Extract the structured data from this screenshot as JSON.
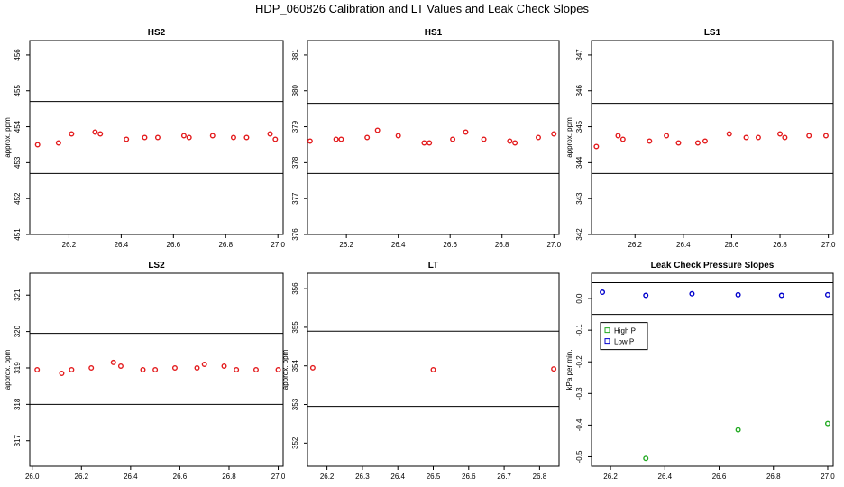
{
  "title": "HDP_060826  Calibration and LT Values and Leak Check Slopes",
  "colors": {
    "point_red": "#e31a1c",
    "high_p": "#22aa22",
    "low_p": "#0000cc",
    "axis": "#000000"
  },
  "chart_data": [
    {
      "type": "scatter",
      "title": "HS2",
      "ylabel": "approx. ppm",
      "xlim": [
        26.05,
        27.02
      ],
      "ylim": [
        451,
        456.4
      ],
      "xticks": [
        26.2,
        26.4,
        26.6,
        26.8,
        27.0
      ],
      "xtick_labels": [
        "26.2",
        "26.4",
        "26.6",
        "26.8",
        "27.0"
      ],
      "yticks": [
        451,
        452,
        453,
        454,
        455,
        456
      ],
      "ytick_labels": [
        "451",
        "452",
        "453",
        "454",
        "455",
        "456"
      ],
      "hlines": [
        454.7,
        452.7
      ],
      "series": [
        {
          "color": "#e31a1c",
          "x": [
            26.08,
            26.16,
            26.21,
            26.3,
            26.32,
            26.42,
            26.49,
            26.54,
            26.64,
            26.66,
            26.75,
            26.83,
            26.88,
            26.97,
            26.99
          ],
          "y": [
            453.5,
            453.55,
            453.8,
            453.85,
            453.8,
            453.65,
            453.7,
            453.7,
            453.75,
            453.7,
            453.75,
            453.7,
            453.7,
            453.8,
            453.65
          ]
        }
      ]
    },
    {
      "type": "scatter",
      "title": "HS1",
      "ylabel": "",
      "xlim": [
        26.05,
        27.02
      ],
      "ylim": [
        376,
        381.4
      ],
      "xticks": [
        26.2,
        26.4,
        26.6,
        26.8,
        27.0
      ],
      "xtick_labels": [
        "26.2",
        "26.4",
        "26.6",
        "26.8",
        "27.0"
      ],
      "yticks": [
        376,
        377,
        378,
        379,
        380,
        381
      ],
      "ytick_labels": [
        "376",
        "377",
        "378",
        "379",
        "380",
        "381"
      ],
      "hlines": [
        379.65,
        377.7
      ],
      "series": [
        {
          "color": "#e31a1c",
          "x": [
            26.06,
            26.16,
            26.18,
            26.28,
            26.32,
            26.4,
            26.5,
            26.52,
            26.61,
            26.66,
            26.73,
            26.83,
            26.85,
            26.94,
            27.0
          ],
          "y": [
            378.6,
            378.65,
            378.65,
            378.7,
            378.9,
            378.75,
            378.55,
            378.55,
            378.65,
            378.85,
            378.65,
            378.6,
            378.55,
            378.7,
            378.8
          ]
        }
      ]
    },
    {
      "type": "scatter",
      "title": "LS1",
      "ylabel": "approx. ppm",
      "xlim": [
        26.02,
        27.02
      ],
      "ylim": [
        342,
        347.4
      ],
      "xticks": [
        26.2,
        26.4,
        26.6,
        26.8,
        27.0
      ],
      "xtick_labels": [
        "26.2",
        "26.4",
        "26.6",
        "26.8",
        "27.0"
      ],
      "yticks": [
        342,
        343,
        344,
        345,
        346,
        347
      ],
      "ytick_labels": [
        "342",
        "343",
        "344",
        "345",
        "346",
        "347"
      ],
      "hlines": [
        345.65,
        343.7
      ],
      "series": [
        {
          "color": "#e31a1c",
          "x": [
            26.04,
            26.13,
            26.15,
            26.26,
            26.33,
            26.38,
            26.46,
            26.49,
            26.59,
            26.66,
            26.71,
            26.8,
            26.82,
            26.92,
            26.99
          ],
          "y": [
            344.45,
            344.75,
            344.65,
            344.6,
            344.75,
            344.55,
            344.55,
            344.6,
            344.8,
            344.7,
            344.7,
            344.8,
            344.7,
            344.75,
            344.75
          ]
        }
      ]
    },
    {
      "type": "scatter",
      "title": "LS2",
      "ylabel": "approx. ppm",
      "xlim": [
        25.99,
        27.02
      ],
      "ylim": [
        316.3,
        321.6
      ],
      "xticks": [
        26.0,
        26.2,
        26.4,
        26.6,
        26.8,
        27.0
      ],
      "xtick_labels": [
        "26.0",
        "26.2",
        "26.4",
        "26.6",
        "26.8",
        "27.0"
      ],
      "yticks": [
        317,
        318,
        319,
        320,
        321
      ],
      "ytick_labels": [
        "317",
        "318",
        "319",
        "320",
        "321"
      ],
      "hlines": [
        319.95,
        318.0
      ],
      "series": [
        {
          "color": "#e31a1c",
          "x": [
            26.02,
            26.12,
            26.16,
            26.24,
            26.33,
            26.36,
            26.45,
            26.5,
            26.58,
            26.67,
            26.7,
            26.78,
            26.83,
            26.91,
            27.0
          ],
          "y": [
            318.95,
            318.85,
            318.95,
            319.0,
            319.15,
            319.05,
            318.95,
            318.95,
            319.0,
            319.0,
            319.1,
            319.05,
            318.95,
            318.95,
            318.95
          ]
        }
      ]
    },
    {
      "type": "scatter",
      "title": "LT",
      "ylabel": "approx. ppm",
      "xlim": [
        26.145,
        26.855
      ],
      "ylim": [
        351.4,
        356.4
      ],
      "xticks": [
        26.2,
        26.3,
        26.4,
        26.5,
        26.6,
        26.7,
        26.8
      ],
      "xtick_labels": [
        "26.2",
        "26.3",
        "26.4",
        "26.5",
        "26.6",
        "26.7",
        "26.8"
      ],
      "yticks": [
        352,
        353,
        354,
        355,
        356
      ],
      "ytick_labels": [
        "352",
        "353",
        "354",
        "355",
        "356"
      ],
      "hlines": [
        354.9,
        352.95
      ],
      "series": [
        {
          "color": "#e31a1c",
          "x": [
            26.16,
            26.5,
            26.84
          ],
          "y": [
            353.95,
            353.9,
            353.92
          ]
        }
      ]
    },
    {
      "type": "scatter",
      "title": "Leak Check Pressure Slopes",
      "ylabel": "kPa per min.",
      "xlim": [
        26.13,
        27.02
      ],
      "ylim": [
        -0.53,
        0.08
      ],
      "xticks": [
        26.2,
        26.4,
        26.6,
        26.8,
        27.0
      ],
      "xtick_labels": [
        "26.2",
        "26.4",
        "26.6",
        "26.8",
        "27.0"
      ],
      "yticks": [
        0.0,
        -0.1,
        -0.2,
        -0.3,
        -0.4,
        -0.5
      ],
      "ytick_labels": [
        "0.0",
        "-0.1",
        "-0.2",
        "-0.3",
        "-0.4",
        "-0.5"
      ],
      "hlines": [
        0.05,
        -0.05
      ],
      "legend": {
        "position": "left-middle",
        "entries": [
          {
            "label": "High P",
            "color": "#22aa22"
          },
          {
            "label": "Low P",
            "color": "#0000cc"
          }
        ]
      },
      "series": [
        {
          "name": "High P",
          "color": "#22aa22",
          "x": [
            26.33,
            26.67,
            27.0
          ],
          "y": [
            -0.505,
            -0.415,
            -0.395
          ]
        },
        {
          "name": "Low P",
          "color": "#0000cc",
          "x": [
            26.17,
            26.33,
            26.5,
            26.67,
            26.83,
            27.0
          ],
          "y": [
            0.02,
            0.01,
            0.015,
            0.012,
            0.01,
            0.012
          ]
        }
      ]
    }
  ]
}
